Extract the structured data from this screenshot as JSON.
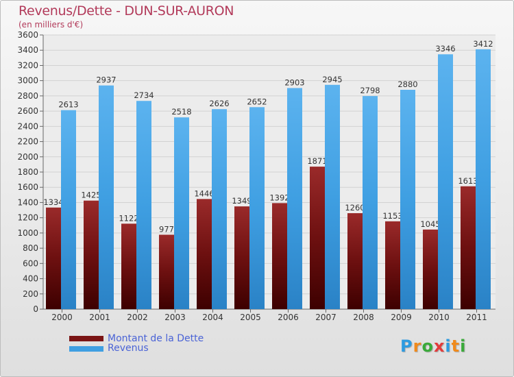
{
  "chart_data": {
    "type": "bar",
    "title": "Revenus/Dette - DUN-SUR-AURON",
    "subtitle": "(en milliers d'€)",
    "categories": [
      "2000",
      "2001",
      "2002",
      "2003",
      "2004",
      "2005",
      "2006",
      "2007",
      "2008",
      "2009",
      "2010",
      "2011"
    ],
    "series": [
      {
        "name": "Montant de la Dette",
        "values": [
          1334,
          1425,
          1122,
          977,
          1446,
          1349,
          1392,
          1871,
          1260,
          1153,
          1045,
          1613
        ],
        "labels": [
          "1334",
          "1425",
          "1122",
          "977",
          "1446",
          "1349",
          "1392",
          "1871",
          "1260",
          "1153",
          "1045",
          "1613"
        ],
        "color": "#7a1414"
      },
      {
        "name": "Revenus",
        "values": [
          2613,
          2937,
          2734,
          2518,
          2626,
          2652,
          2903,
          2945,
          2798,
          2880,
          3346,
          3412
        ],
        "labels": [
          "2613",
          "2937",
          "2734",
          "2518",
          "2626",
          "2652",
          "2903",
          "2945",
          "2798",
          "2880",
          "3346",
          "3412"
        ],
        "color": "#3f9fe2"
      }
    ],
    "ylim": [
      0,
      3600
    ],
    "yticks": [
      "0",
      "200",
      "400",
      "600",
      "800",
      "1000",
      "1200",
      "1400",
      "1600",
      "1800",
      "2000",
      "2200",
      "2400",
      "2600",
      "2800",
      "3000",
      "3200",
      "3400",
      "3600"
    ],
    "grid": true,
    "legend_position": "bottom-left"
  },
  "logo": {
    "text": "Proxiti"
  }
}
